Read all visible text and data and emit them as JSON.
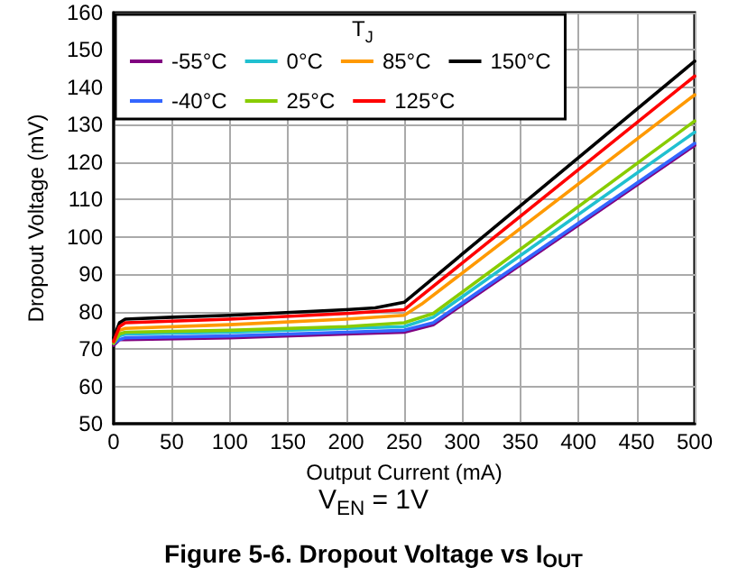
{
  "chart_data": {
    "type": "line",
    "title": "Figure 5-6. Dropout Voltage vs I$_{OUT}$",
    "xlabel": "Output Current (mA)",
    "ylabel": "Dropout Voltage (mV)",
    "legend_title": "T$_{J}$",
    "annotations": [
      "V$_{EN}$ = 1V"
    ],
    "xlim": [
      0,
      500
    ],
    "xticks": [
      0,
      50,
      100,
      150,
      200,
      250,
      300,
      350,
      400,
      450,
      500
    ],
    "ylim": [
      50,
      160
    ],
    "yticks": [
      50,
      60,
      70,
      80,
      90,
      100,
      110,
      120,
      130,
      140,
      150,
      160
    ],
    "grid": true,
    "legend": "top left",
    "marker": "none",
    "line_style": "solid",
    "series": [
      {
        "name": "-55°C",
        "color": "#800080",
        "x": [
          0,
          5,
          10,
          100,
          200,
          250,
          275,
          500
        ],
        "values": [
          71,
          72.5,
          72.5,
          73,
          74,
          74.5,
          76.5,
          124.5
        ]
      },
      {
        "name": "0°C",
        "color": "#20c0d0",
        "x": [
          0,
          5,
          10,
          100,
          200,
          250,
          275,
          500
        ],
        "values": [
          71.5,
          73.5,
          74,
          74.5,
          75.5,
          76,
          78.5,
          128
        ]
      },
      {
        "name": "85°C",
        "color": "#ff9900",
        "x": [
          0,
          5,
          10,
          100,
          200,
          250,
          265,
          500
        ],
        "values": [
          72,
          75,
          75.5,
          76.5,
          78,
          79,
          82,
          138
        ]
      },
      {
        "name": "150°C",
        "color": "#000000",
        "x": [
          0,
          5,
          10,
          50,
          100,
          200,
          225,
          250,
          500
        ],
        "values": [
          73,
          77,
          78,
          78.5,
          79,
          80.5,
          81,
          82.5,
          147
        ]
      },
      {
        "name": "-40°C",
        "color": "#3366ff",
        "x": [
          0,
          5,
          10,
          100,
          200,
          250,
          275,
          500
        ],
        "values": [
          71.5,
          72.5,
          73,
          73.5,
          74.5,
          75,
          77,
          125
        ]
      },
      {
        "name": "25°C",
        "color": "#88cc00",
        "x": [
          0,
          5,
          10,
          100,
          200,
          250,
          275,
          500
        ],
        "values": [
          71.5,
          74,
          74.5,
          75,
          76,
          77,
          79.5,
          131
        ]
      },
      {
        "name": "125°C",
        "color": "#ff0000",
        "x": [
          0,
          5,
          10,
          100,
          200,
          250,
          260,
          500
        ],
        "values": [
          72,
          76,
          77,
          78,
          79.5,
          80.5,
          83,
          143
        ]
      }
    ]
  }
}
